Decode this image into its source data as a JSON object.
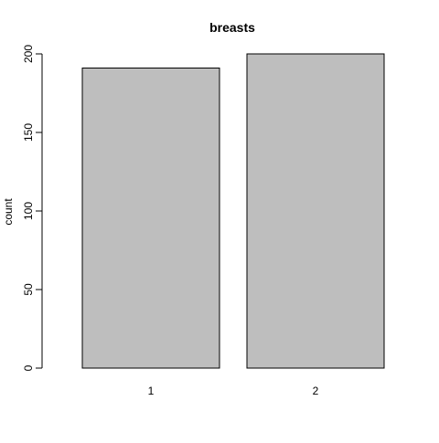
{
  "chart_data": {
    "type": "bar",
    "title": "breasts",
    "xlabel": "",
    "ylabel": "count",
    "categories": [
      "1",
      "2"
    ],
    "values": [
      191,
      200
    ],
    "ylim": [
      0,
      200
    ],
    "yticks": [
      0,
      50,
      100,
      150,
      200
    ],
    "grid": false,
    "bar_color": "#bebebe",
    "bar_edge_color": "#000000"
  }
}
